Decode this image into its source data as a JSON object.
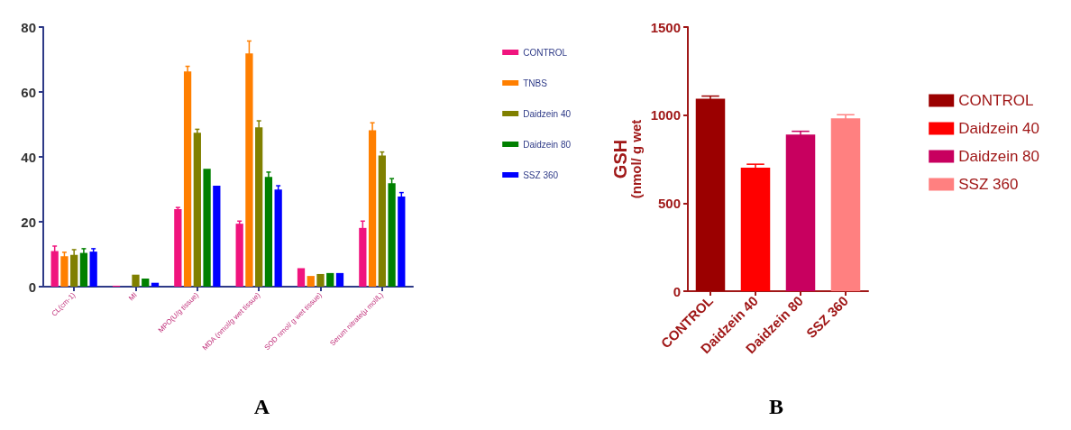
{
  "chart_data": [
    {
      "type": "bar",
      "title": "A",
      "categories": [
        "CL(cm-1)",
        "MI",
        "MPO(U/g tissue)",
        "MDA (nmol/g wet tissue)",
        "SOD nmol/ g wet tissue)",
        "Serum nitrate(µ mol/L)"
      ],
      "ylim": [
        0,
        80
      ],
      "yticks": [
        0,
        20,
        40,
        60,
        80
      ],
      "grid": false,
      "legend": "right",
      "series": [
        {
          "name": "CONTROL",
          "color": "#f0147e",
          "values": [
            11.0,
            0.3,
            23.9,
            19.4,
            5.7,
            18.1
          ],
          "errors": [
            1.5,
            null,
            0.5,
            0.8,
            null,
            2.1
          ]
        },
        {
          "name": "TNBS",
          "color": "#ff7f00",
          "values": [
            9.4,
            0,
            66.3,
            71.9,
            3.3,
            48.2
          ],
          "errors": [
            1.2,
            null,
            1.6,
            3.8,
            null,
            2.3
          ]
        },
        {
          "name": "Daidzein 40",
          "color": "#808000",
          "values": [
            9.8,
            3.7,
            47.4,
            49.1,
            3.9,
            40.4
          ],
          "errors": [
            1.6,
            null,
            1.1,
            2.0,
            null,
            1.1
          ]
        },
        {
          "name": "Daidzein 80",
          "color": "#008000",
          "values": [
            10.4,
            2.5,
            36.3,
            33.8,
            4.2,
            31.9
          ],
          "errors": [
            1.3,
            null,
            null,
            1.5,
            null,
            1.4
          ]
        },
        {
          "name": "SSZ 360",
          "color": "#0000ff",
          "values": [
            10.8,
            1.2,
            31.1,
            29.9,
            4.2,
            27.8
          ],
          "errors": [
            0.9,
            null,
            null,
            1.2,
            null,
            1.2
          ]
        }
      ]
    },
    {
      "type": "bar",
      "title": "B",
      "ylabel": "GSH (nmol/ g wet",
      "categories": [
        "CONTROL",
        "Daidzein 40",
        "Daidzein 80",
        "SSZ 360"
      ],
      "stacked": true,
      "ylim": [
        0,
        1500
      ],
      "yticks": [
        0,
        500,
        1000,
        1500
      ],
      "grid": false,
      "legend": "right",
      "series": [
        {
          "name": "CONTROL",
          "color": "#9b0000",
          "values": [
            1093,
            null,
            null,
            null
          ],
          "errors": [
            15,
            null,
            null,
            null
          ]
        },
        {
          "name": "Daidzein 40",
          "color": "#ff0000",
          "values": [
            null,
            701,
            null,
            null
          ],
          "errors": [
            null,
            20,
            null,
            null
          ]
        },
        {
          "name": "Daidzein 80",
          "color": "#c8005f",
          "values": [
            null,
            null,
            889,
            null
          ],
          "errors": [
            null,
            null,
            19,
            null
          ]
        },
        {
          "name": "SSZ 360",
          "color": "#ff8080",
          "values": [
            null,
            null,
            null,
            982
          ],
          "errors": [
            null,
            null,
            null,
            20
          ]
        }
      ]
    }
  ]
}
